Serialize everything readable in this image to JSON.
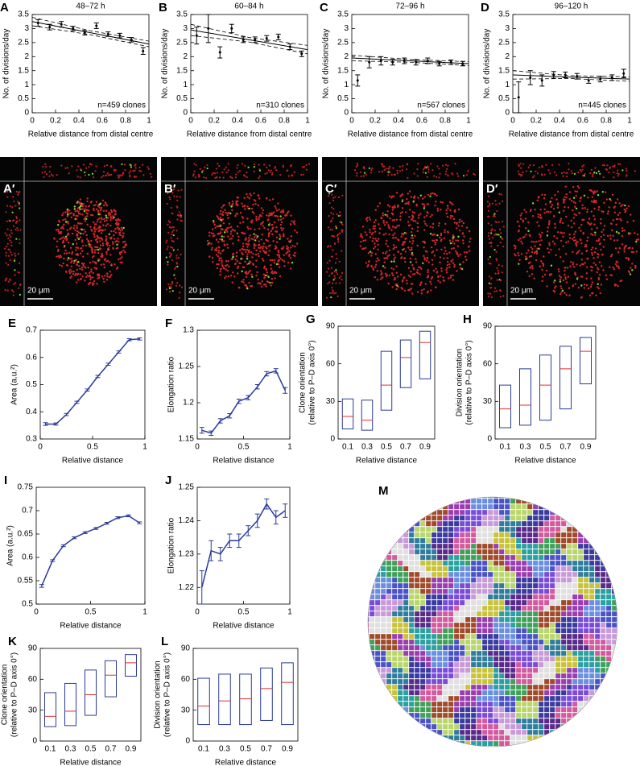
{
  "chart_data": [
    {
      "type": "scatter",
      "panel": "A",
      "title": "48–72 h",
      "xlabel": "Relative distance from distal centre",
      "ylabel": "No. of divisions/day",
      "annotation": "n=459 clones",
      "x": [
        0.05,
        0.15,
        0.25,
        0.35,
        0.45,
        0.55,
        0.65,
        0.75,
        0.85,
        0.95
      ],
      "values": [
        3.2,
        3.05,
        3.15,
        3.0,
        2.85,
        3.1,
        2.8,
        2.75,
        2.6,
        2.2
      ],
      "errors": [
        0.12,
        0.1,
        0.1,
        0.08,
        0.08,
        0.1,
        0.08,
        0.08,
        0.08,
        0.12
      ],
      "fit_x": [
        0,
        0.5,
        1
      ],
      "fit": [
        3.25,
        2.85,
        2.45
      ],
      "ci_lower": [
        3.1,
        2.78,
        2.35
      ],
      "ci_upper": [
        3.4,
        2.92,
        2.55
      ],
      "xlim": [
        0,
        1
      ],
      "xticks": [
        0,
        0.2,
        0.4,
        0.6,
        0.8,
        1
      ],
      "ylim": [
        0,
        3.5
      ],
      "yticks": [
        0,
        0.5,
        1,
        1.5,
        2,
        2.5,
        3,
        3.5
      ],
      "color": "#000000"
    },
    {
      "type": "scatter",
      "panel": "B",
      "title": "60–84 h",
      "xlabel": "Relative distance from distal centre",
      "ylabel": "No. of divisions/day",
      "annotation": "n=310 clones",
      "x": [
        0.05,
        0.15,
        0.25,
        0.35,
        0.45,
        0.55,
        0.65,
        0.75,
        0.85,
        0.95
      ],
      "values": [
        2.75,
        3.0,
        2.15,
        3.0,
        2.6,
        2.6,
        2.65,
        2.7,
        2.35,
        2.1
      ],
      "errors": [
        0.3,
        0.5,
        0.2,
        0.15,
        0.1,
        0.1,
        0.1,
        0.1,
        0.1,
        0.1
      ],
      "fit_x": [
        0,
        0.5,
        1
      ],
      "fit": [
        2.95,
        2.6,
        2.25
      ],
      "ci_lower": [
        2.75,
        2.52,
        2.1
      ],
      "ci_upper": [
        3.15,
        2.68,
        2.4
      ],
      "xlim": [
        0,
        1
      ],
      "xticks": [
        0,
        0.2,
        0.4,
        0.6,
        0.8,
        1
      ],
      "ylim": [
        0,
        3.5
      ],
      "yticks": [
        0,
        0.5,
        1,
        1.5,
        2,
        2.5,
        3,
        3.5
      ],
      "color": "#000000"
    },
    {
      "type": "scatter",
      "panel": "C",
      "title": "72–96 h",
      "xlabel": "Relative distance from distal centre",
      "ylabel": "No. of divisions/day",
      "annotation": "n=567 clones",
      "x": [
        0.05,
        0.15,
        0.25,
        0.35,
        0.45,
        0.55,
        0.65,
        0.75,
        0.85,
        0.95
      ],
      "values": [
        1.15,
        1.8,
        1.85,
        1.8,
        1.85,
        1.8,
        1.85,
        1.75,
        1.8,
        1.75
      ],
      "errors": [
        0.2,
        0.2,
        0.15,
        0.1,
        0.1,
        0.1,
        0.1,
        0.08,
        0.08,
        0.08
      ],
      "fit_x": [
        0,
        0.5,
        1
      ],
      "fit": [
        1.95,
        1.85,
        1.75
      ],
      "ci_lower": [
        1.85,
        1.8,
        1.68
      ],
      "ci_upper": [
        2.05,
        1.9,
        1.82
      ],
      "xlim": [
        0,
        1
      ],
      "xticks": [
        0,
        0.2,
        0.4,
        0.6,
        0.8,
        1
      ],
      "ylim": [
        0,
        3.5
      ],
      "yticks": [
        0,
        0.5,
        1,
        1.5,
        2,
        2.5,
        3,
        3.5
      ],
      "color": "#000000"
    },
    {
      "type": "scatter",
      "panel": "D",
      "title": "96–120 h",
      "xlabel": "Relative distance from distal centre",
      "ylabel": "No. of divisions/day",
      "annotation": "n=445 clones",
      "x": [
        0.05,
        0.15,
        0.25,
        0.35,
        0.45,
        0.55,
        0.65,
        0.75,
        0.85,
        0.95
      ],
      "values": [
        0.55,
        1.25,
        1.15,
        1.35,
        1.35,
        1.3,
        1.15,
        1.2,
        1.25,
        1.4
      ],
      "errors": [
        0.55,
        0.25,
        0.2,
        0.12,
        0.1,
        0.1,
        0.1,
        0.1,
        0.1,
        0.15
      ],
      "fit_x": [
        0,
        0.5,
        1
      ],
      "fit": [
        1.35,
        1.27,
        1.2
      ],
      "ci_lower": [
        1.2,
        1.22,
        1.12
      ],
      "ci_upper": [
        1.5,
        1.32,
        1.28
      ],
      "xlim": [
        0,
        1
      ],
      "xticks": [
        0,
        0.2,
        0.4,
        0.6,
        0.8,
        1
      ],
      "ylim": [
        0,
        3.5
      ],
      "yticks": [
        0,
        0.5,
        1,
        1.5,
        2,
        2.5,
        3,
        3.5
      ],
      "color": "#000000"
    },
    {
      "type": "line",
      "panel": "E",
      "xlabel": "Relative distance",
      "ylabel": "Area (a.u.²)",
      "x": [
        0.05,
        0.15,
        0.25,
        0.35,
        0.45,
        0.55,
        0.65,
        0.75,
        0.85,
        0.95
      ],
      "values": [
        0.355,
        0.355,
        0.39,
        0.435,
        0.48,
        0.53,
        0.575,
        0.62,
        0.665,
        0.668
      ],
      "errors": [
        0.005,
        0.004,
        0.004,
        0.004,
        0.004,
        0.004,
        0.004,
        0.004,
        0.004,
        0.004
      ],
      "xlim": [
        0,
        1
      ],
      "xticks": [
        0,
        0.5,
        1
      ],
      "ylim": [
        0.3,
        0.7
      ],
      "yticks": [
        0.3,
        0.4,
        0.5,
        0.6,
        0.7
      ],
      "color": "#2b3a9a"
    },
    {
      "type": "line",
      "panel": "F",
      "xlabel": "Relative distance",
      "ylabel": "Elongation ratio",
      "x": [
        0.05,
        0.15,
        0.25,
        0.35,
        0.45,
        0.55,
        0.65,
        0.75,
        0.85,
        0.95
      ],
      "values": [
        1.162,
        1.158,
        1.175,
        1.182,
        1.202,
        1.207,
        1.222,
        1.24,
        1.244,
        1.217
      ],
      "errors": [
        0.004,
        0.003,
        0.003,
        0.003,
        0.003,
        0.003,
        0.003,
        0.003,
        0.003,
        0.004
      ],
      "xlim": [
        0,
        1
      ],
      "xticks": [
        0,
        0.5,
        1
      ],
      "ylim": [
        1.15,
        1.3
      ],
      "yticks": [
        1.15,
        1.2,
        1.25,
        1.3
      ],
      "color": "#2b3a9a"
    },
    {
      "type": "box",
      "panel": "G",
      "xlabel": "Relative distance",
      "ylabel": [
        "Clone orientation",
        "(relative to P–D axis 0°)"
      ],
      "categories": [
        "0.1",
        "0.3",
        "0.5",
        "0.7",
        "0.9"
      ],
      "q1": [
        8,
        7,
        23,
        41,
        48
      ],
      "median": [
        18,
        15,
        43,
        65,
        77
      ],
      "q3": [
        32,
        31,
        70,
        79,
        86
      ],
      "ylim": [
        0,
        90
      ],
      "yticks": [
        0,
        30,
        60,
        90
      ],
      "color": "#2b3a9a",
      "median_color": "#e0302a"
    },
    {
      "type": "box",
      "panel": "H",
      "xlabel": "Relative distance",
      "ylabel": [
        "Division orientation",
        "(relative to P–D axis 0°)"
      ],
      "categories": [
        "0.1",
        "0.3",
        "0.5",
        "0.7",
        "0.9"
      ],
      "q1": [
        9,
        11,
        15,
        24,
        44
      ],
      "median": [
        24,
        27,
        43,
        56,
        70
      ],
      "q3": [
        43,
        56,
        67,
        74,
        81
      ],
      "ylim": [
        0,
        90
      ],
      "yticks": [
        0,
        30,
        60,
        90
      ],
      "color": "#2b3a9a",
      "median_color": "#e0302a"
    },
    {
      "type": "line",
      "panel": "I",
      "xlabel": "Relative distance",
      "ylabel": "Area (a.u.²)",
      "x": [
        0.05,
        0.15,
        0.25,
        0.35,
        0.45,
        0.55,
        0.65,
        0.75,
        0.85,
        0.95
      ],
      "values": [
        0.539,
        0.593,
        0.625,
        0.642,
        0.653,
        0.662,
        0.673,
        0.685,
        0.689,
        0.674
      ],
      "errors": [
        0.003,
        0.002,
        0.002,
        0.002,
        0.002,
        0.002,
        0.002,
        0.002,
        0.002,
        0.002
      ],
      "xlim": [
        0,
        1
      ],
      "xticks": [
        0,
        0.5,
        1
      ],
      "ylim": [
        0.5,
        0.75
      ],
      "yticks": [
        0.5,
        0.55,
        0.6,
        0.65,
        0.7,
        0.75
      ],
      "color": "#2b3a9a"
    },
    {
      "type": "line",
      "panel": "J",
      "xlabel": "Relative distance",
      "ylabel": "Elongation ratio",
      "x": [
        0.05,
        0.15,
        0.25,
        0.35,
        0.45,
        0.55,
        0.65,
        0.75,
        0.85,
        0.95
      ],
      "values": [
        1.22,
        1.231,
        1.23,
        1.234,
        1.234,
        1.237,
        1.24,
        1.245,
        1.241,
        1.243
      ],
      "errors": [
        0.005,
        0.003,
        0.002,
        0.002,
        0.002,
        0.0015,
        0.002,
        0.0015,
        0.002,
        0.002
      ],
      "xlim": [
        0,
        1
      ],
      "xticks": [
        0,
        0.5,
        1
      ],
      "ylim": [
        1.215,
        1.25
      ],
      "yticks": [
        1.22,
        1.23,
        1.24,
        1.25
      ],
      "color": "#2b3a9a"
    },
    {
      "type": "box",
      "panel": "K",
      "xlabel": "Relative distance",
      "ylabel": [
        "Clone orientation",
        "(relative to P–D axis 0°)"
      ],
      "categories": [
        "0.1",
        "0.3",
        "0.5",
        "0.7",
        "0.9"
      ],
      "q1": [
        14,
        15,
        25,
        43,
        63
      ],
      "median": [
        24,
        29,
        45,
        64,
        76
      ],
      "q3": [
        47,
        56,
        69,
        78,
        84
      ],
      "ylim": [
        0,
        90
      ],
      "yticks": [
        0,
        30,
        60,
        90
      ],
      "color": "#2b3a9a",
      "median_color": "#e0302a"
    },
    {
      "type": "box",
      "panel": "L",
      "xlabel": "Relative distance",
      "ylabel": [
        "Division orientation",
        "(relative to P–D axis 0°)"
      ],
      "categories": [
        "0.1",
        "0.3",
        "0.5",
        "0.7",
        "0.9"
      ],
      "q1": [
        16,
        16,
        16,
        20,
        16
      ],
      "median": [
        34,
        39,
        41,
        51,
        57
      ],
      "q3": [
        61,
        65,
        65,
        71,
        76
      ],
      "ylim": [
        0,
        90
      ],
      "yticks": [
        0,
        30,
        60,
        90
      ],
      "color": "#2b3a9a",
      "median_color": "#e0302a"
    }
  ],
  "micrographs": [
    {
      "panel": "A′",
      "scale": "20 μm"
    },
    {
      "panel": "B′",
      "scale": "20 μm"
    },
    {
      "panel": "C′",
      "scale": "20 μm"
    },
    {
      "panel": "D′",
      "scale": "20 μm"
    }
  ],
  "panel_m": "M"
}
